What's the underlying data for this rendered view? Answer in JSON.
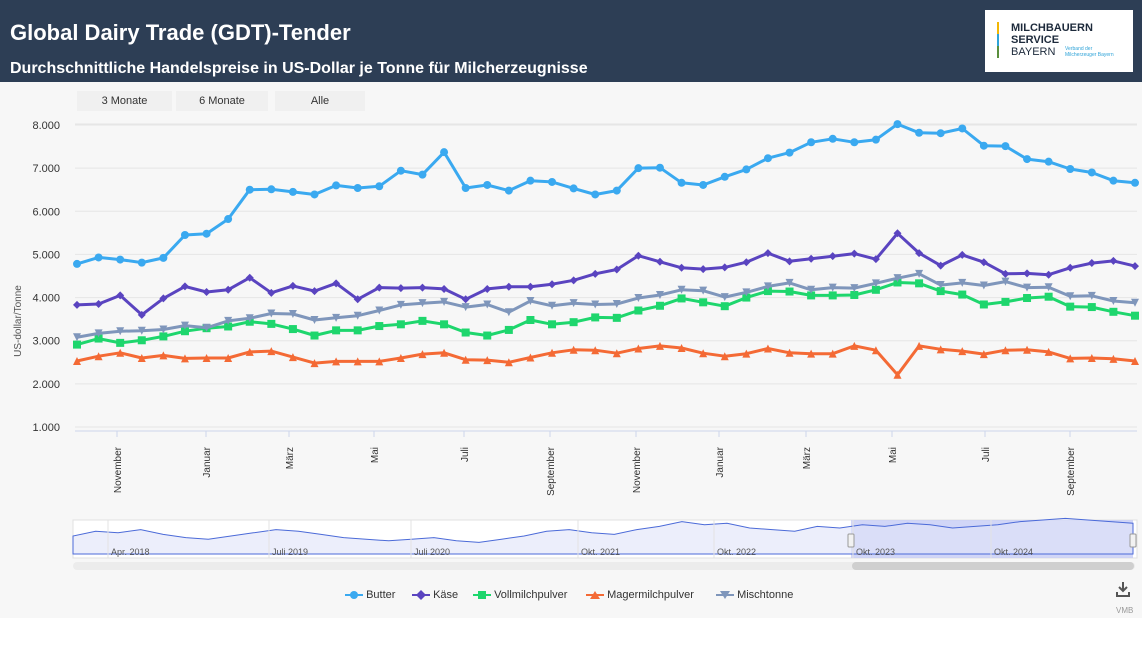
{
  "header": {
    "title": "Global Dairy Trade (GDT)-Tender",
    "subtitle": "Durchschnittliche Handelspreise in US-Dollar je Tonne für Milcherzeugnisse",
    "logo_line1": "MILCHBAUERN",
    "logo_line2": "SERVICE",
    "logo_line3": "BAYERN",
    "logo_tagline": "Verband der Milcherzeuger Bayern"
  },
  "range_buttons": [
    "3 Monate",
    "6 Monate",
    "Alle"
  ],
  "navigator": {
    "labels": [
      "Apr. 2018",
      "Juli 2019",
      "Juli 2020",
      "Okt. 2021",
      "Okt. 2022",
      "Okt. 2023",
      "Okt. 2024"
    ]
  },
  "credit": "VMB",
  "colors": {
    "butter": "#3aa9f0",
    "kaese": "#5a44c0",
    "vollmilch": "#1ed66d",
    "magermilch": "#f46a35",
    "mischtonne": "#7f96bb",
    "header": "#2d3e55"
  },
  "icons": {
    "download": "download-icon"
  },
  "chart_data": {
    "type": "line",
    "ylabel": "US-dollar/Tonne",
    "ylim": [
      1000,
      8000
    ],
    "y_ticks": [
      "1.000",
      "2.000",
      "3.000",
      "4.000",
      "5.000",
      "6.000",
      "7.000",
      "8.000"
    ],
    "x_ticks": [
      "November",
      "Januar",
      "März",
      "Mai",
      "Juli",
      "September",
      "November",
      "Januar",
      "März",
      "Mai",
      "Juli",
      "September"
    ],
    "grid": true,
    "legend_position": "bottom",
    "series": [
      {
        "name": "Butter",
        "marker": "circle",
        "values": [
          4780,
          4930,
          4880,
          4810,
          4920,
          5450,
          5480,
          5820,
          6500,
          6510,
          6450,
          6390,
          6600,
          6540,
          6580,
          6940,
          6850,
          7370,
          6540,
          6610,
          6480,
          6710,
          6680,
          6530,
          6390,
          6480,
          7000,
          7010,
          6660,
          6610,
          6800,
          6970,
          7230,
          7360,
          7600,
          7680,
          7600,
          7660,
          8020,
          7820,
          7810,
          7920,
          7520,
          7510,
          7210,
          7150,
          6980,
          6900,
          6710,
          6660
        ]
      },
      {
        "name": "Käse",
        "marker": "diamond",
        "values": [
          3830,
          3850,
          4050,
          3600,
          3980,
          4260,
          4130,
          4180,
          4460,
          4110,
          4270,
          4150,
          4330,
          3960,
          4230,
          4220,
          4230,
          4200,
          3960,
          4200,
          4250,
          4250,
          4310,
          4400,
          4550,
          4650,
          4970,
          4830,
          4690,
          4660,
          4700,
          4820,
          5030,
          4840,
          4900,
          4960,
          5020,
          4890,
          5490,
          5030,
          4740,
          4990,
          4820,
          4550,
          4560,
          4530,
          4690,
          4800,
          4850,
          4730
        ]
      },
      {
        "name": "Vollmilchpulver",
        "marker": "square",
        "values": [
          2910,
          3050,
          2950,
          3010,
          3100,
          3220,
          3290,
          3330,
          3440,
          3390,
          3270,
          3120,
          3240,
          3240,
          3340,
          3380,
          3460,
          3380,
          3190,
          3120,
          3250,
          3480,
          3380,
          3430,
          3540,
          3530,
          3700,
          3810,
          3980,
          3890,
          3800,
          4000,
          4150,
          4140,
          4050,
          4050,
          4060,
          4180,
          4350,
          4330,
          4150,
          4070,
          3840,
          3900,
          3990,
          4020,
          3790,
          3780,
          3670,
          3580
        ]
      },
      {
        "name": "Magermilchpulver",
        "marker": "triangle",
        "values": [
          2530,
          2640,
          2720,
          2600,
          2660,
          2590,
          2600,
          2600,
          2740,
          2760,
          2620,
          2480,
          2520,
          2520,
          2520,
          2600,
          2690,
          2720,
          2560,
          2550,
          2500,
          2610,
          2720,
          2790,
          2780,
          2710,
          2820,
          2880,
          2830,
          2710,
          2640,
          2700,
          2820,
          2720,
          2700,
          2700,
          2880,
          2780,
          2210,
          2880,
          2800,
          2760,
          2690,
          2780,
          2790,
          2740,
          2590,
          2600,
          2580,
          2530
        ]
      },
      {
        "name": "Mischtonne",
        "marker": "triangle-down",
        "values": [
          3080,
          3170,
          3220,
          3230,
          3260,
          3350,
          3300,
          3460,
          3520,
          3630,
          3620,
          3480,
          3530,
          3580,
          3700,
          3830,
          3870,
          3900,
          3780,
          3840,
          3660,
          3920,
          3810,
          3870,
          3840,
          3850,
          3990,
          4060,
          4180,
          4160,
          4010,
          4120,
          4260,
          4340,
          4180,
          4230,
          4220,
          4330,
          4450,
          4550,
          4290,
          4340,
          4280,
          4370,
          4230,
          4240,
          4030,
          4040,
          3920,
          3880
        ]
      }
    ]
  }
}
